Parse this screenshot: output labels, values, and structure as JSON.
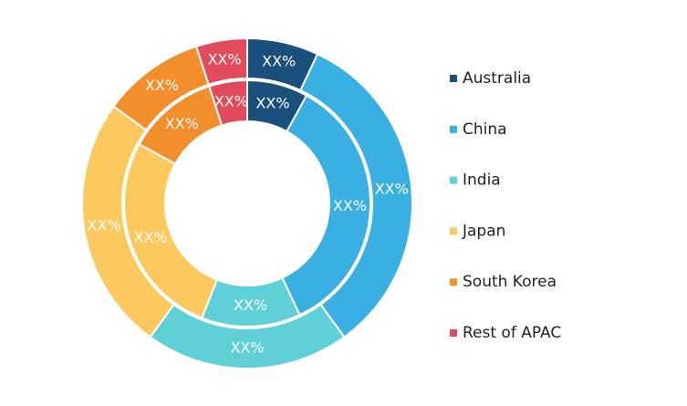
{
  "chart_data": {
    "type": "donut",
    "categories": [
      "Australia",
      "China",
      "India",
      "Japan",
      "South Korea",
      "Rest of APAC"
    ],
    "colors": [
      "#1b4f7c",
      "#3aafe2",
      "#5fd0d8",
      "#fdc85e",
      "#f28e2b",
      "#e14b5b"
    ],
    "series": [
      {
        "values": [
          7,
          33,
          20,
          25,
          10,
          5
        ],
        "value_labels": [
          "XX%",
          "XX%",
          "XX%",
          "XX%",
          "XX%",
          "XX%"
        ]
      },
      {
        "values": [
          8,
          35,
          13,
          27,
          12,
          5
        ],
        "value_labels": [
          "XX%",
          "XX%",
          "XX%",
          "XX%",
          "XX%",
          "XX%"
        ]
      }
    ]
  }
}
